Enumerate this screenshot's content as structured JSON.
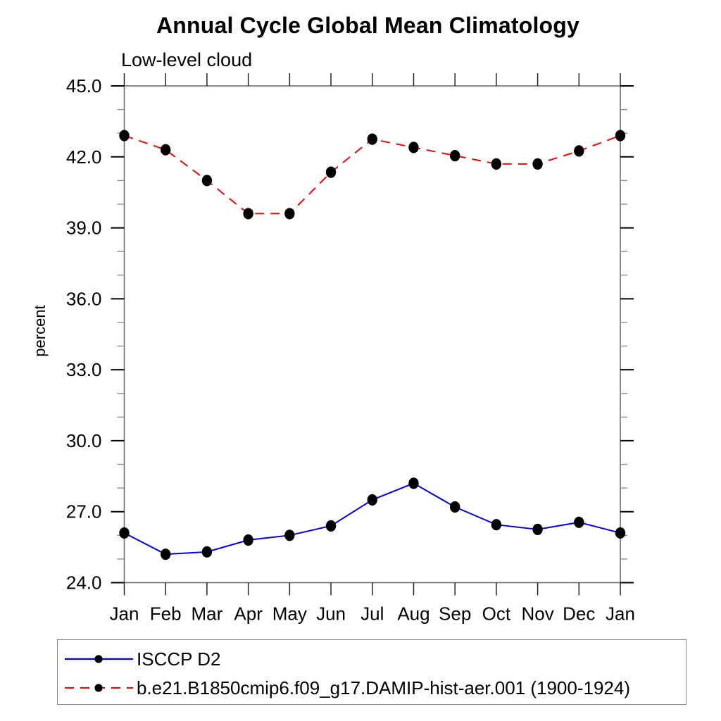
{
  "chart_data": {
    "type": "line",
    "title": "Annual Cycle Global Mean Climatology",
    "subtitle": "Low-level cloud",
    "xlabel": "",
    "ylabel": "percent",
    "categories": [
      "Jan",
      "Feb",
      "Mar",
      "Apr",
      "May",
      "Jun",
      "Jul",
      "Aug",
      "Sep",
      "Oct",
      "Nov",
      "Dec",
      "Jan"
    ],
    "ylim": [
      24.0,
      45.0
    ],
    "yticks": [
      24,
      27,
      30,
      33,
      36,
      39,
      42,
      45
    ],
    "ytick_labels": [
      "24.0",
      "27.0",
      "30.0",
      "33.0",
      "36.0",
      "39.0",
      "42.0",
      "45.0"
    ],
    "minor_tick_step": 1.0,
    "grid": false,
    "legend_position": "bottom-outside-box",
    "marker": "filled-circle",
    "marker_color": "#000000",
    "series": [
      {
        "name": "ISCCP D2",
        "color": "#0000ee",
        "line_style": "solid",
        "values": [
          26.1,
          25.2,
          25.3,
          25.8,
          26.0,
          26.4,
          27.5,
          28.2,
          27.2,
          26.45,
          26.25,
          26.55,
          26.1
        ]
      },
      {
        "name": "b.e21.B1850cmip6.f09_g17.DAMIP-hist-aer.001 (1900-1924)",
        "color": "#ff0000",
        "line_style": "dashed",
        "values": [
          42.9,
          42.3,
          41.0,
          39.6,
          39.6,
          41.35,
          42.75,
          42.4,
          42.05,
          41.7,
          41.7,
          42.25,
          42.9
        ]
      }
    ]
  }
}
